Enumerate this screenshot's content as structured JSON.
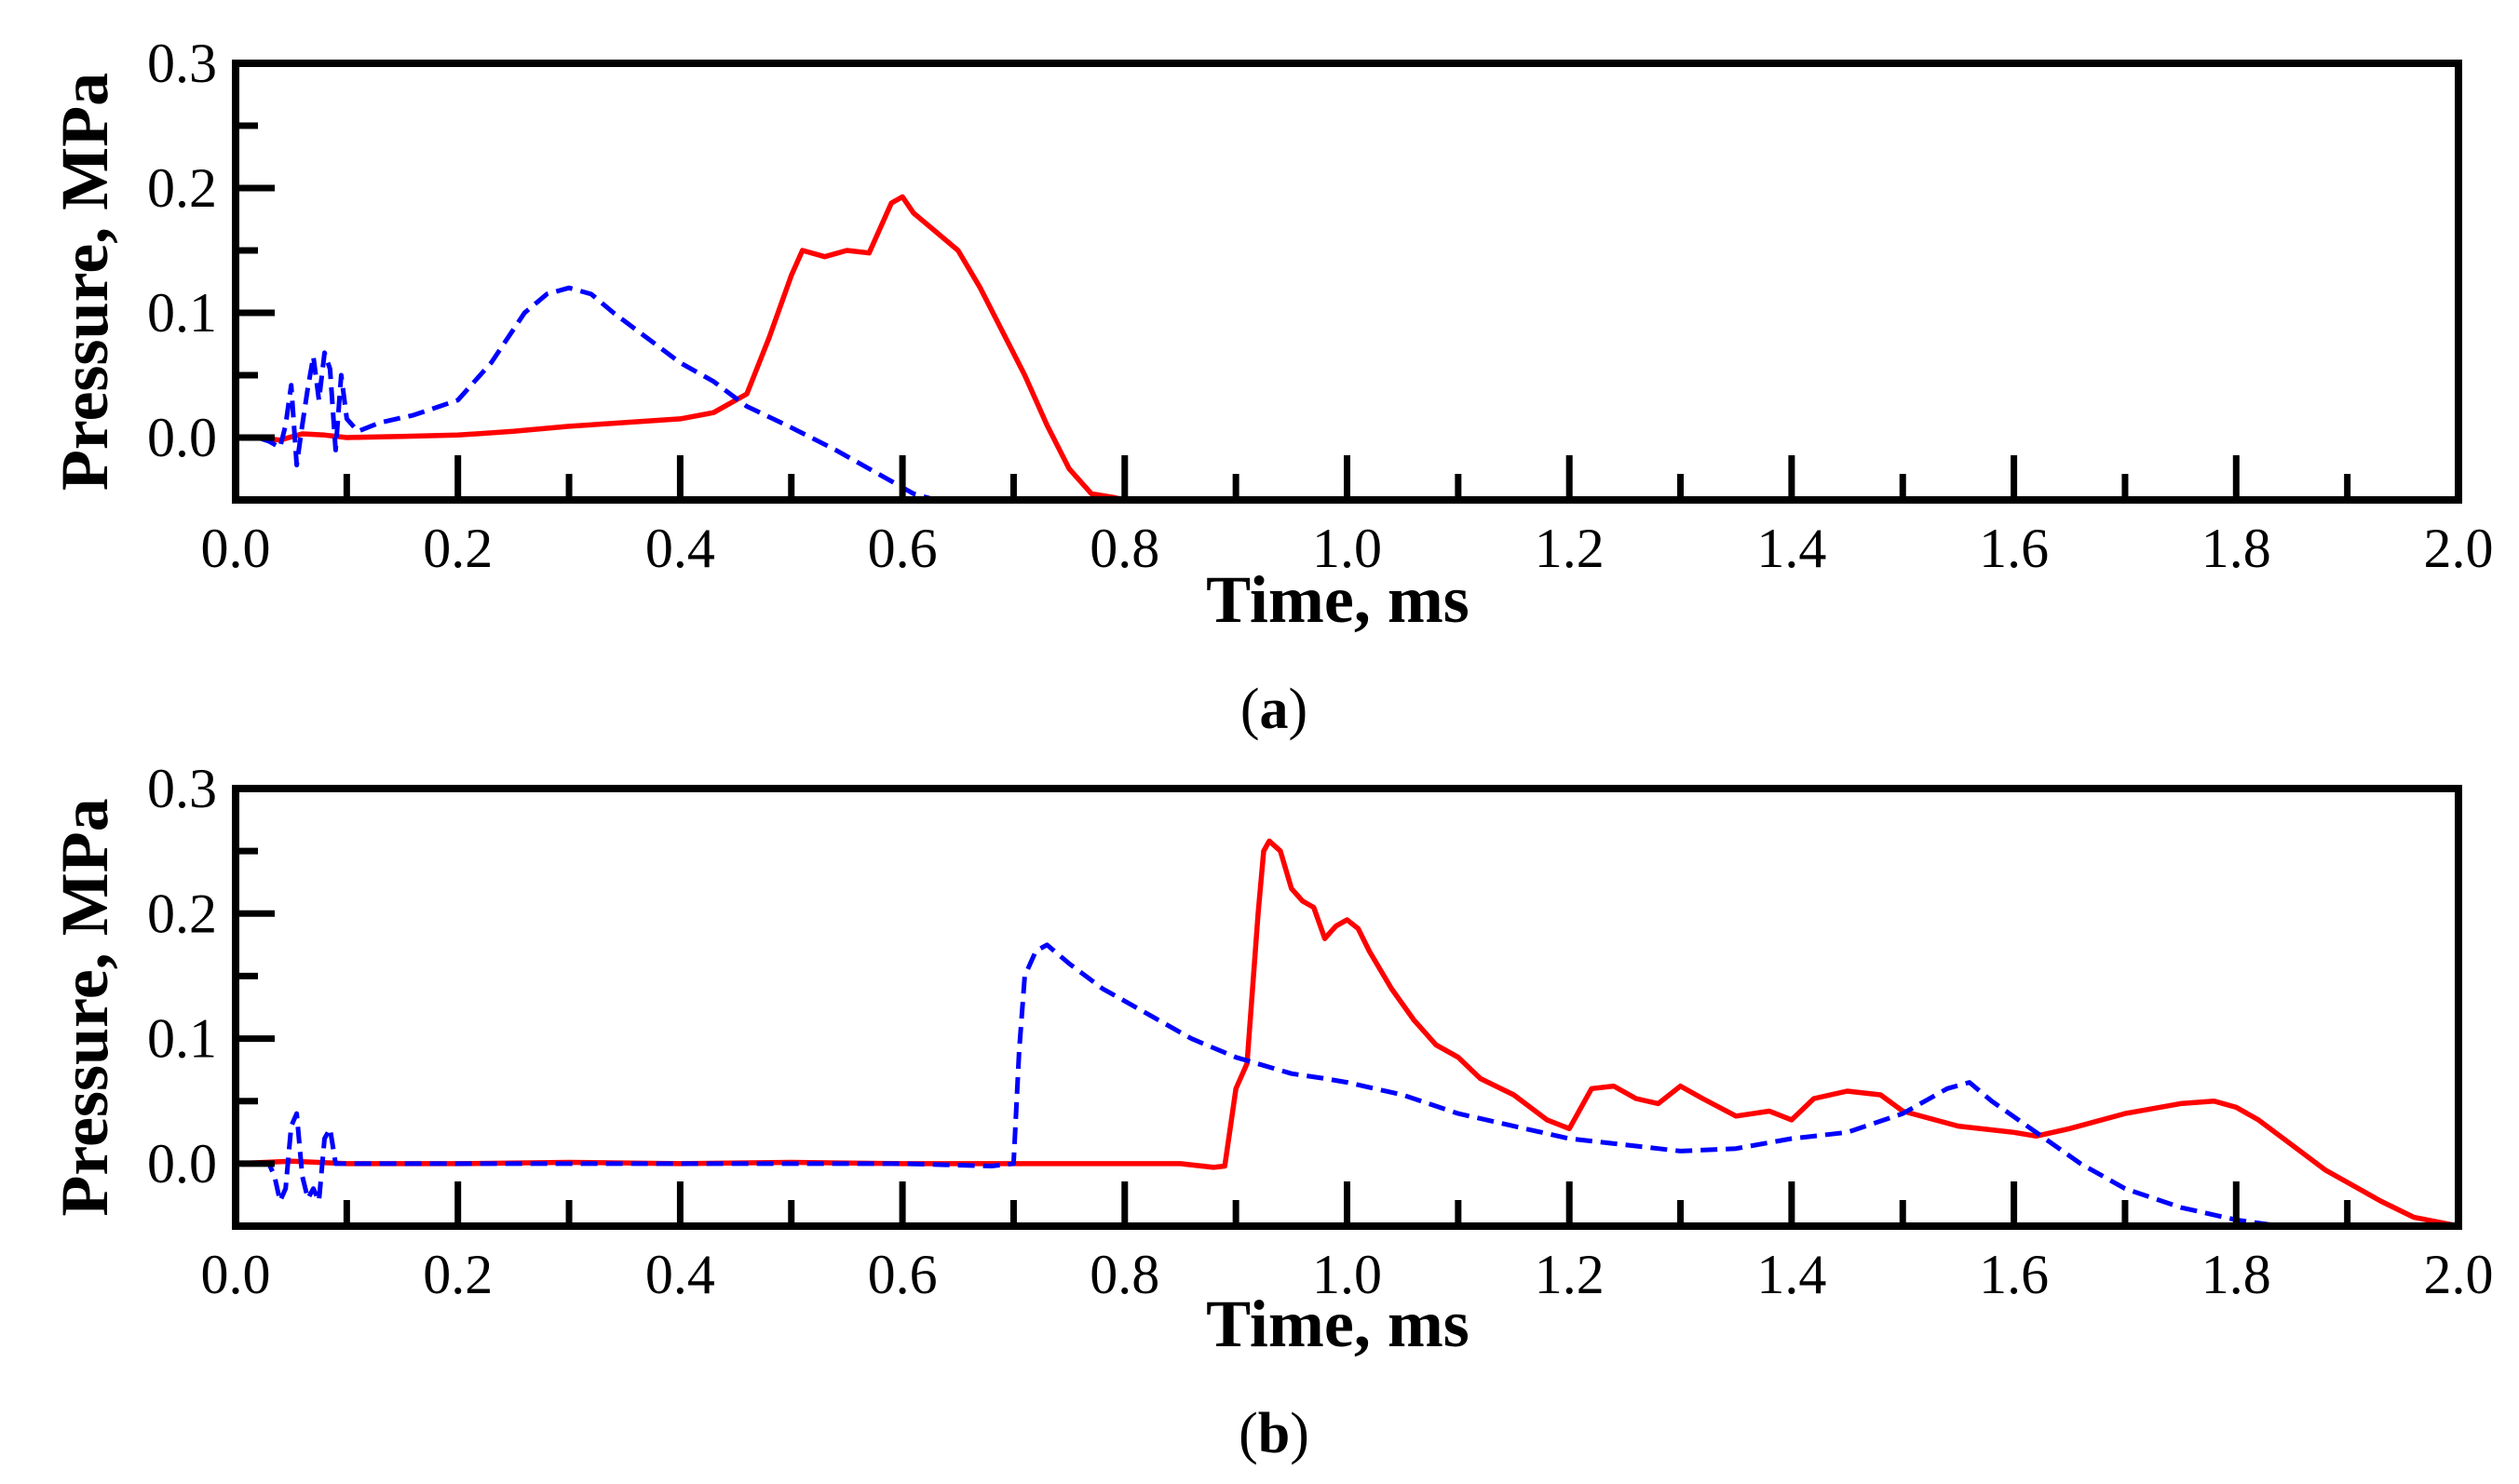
{
  "chart_data": [
    {
      "type": "line",
      "panel_label": "(a)",
      "panel_letter": "a",
      "xlabel": "Time, ms",
      "ylabel": "Pressure, MPa",
      "xlim": [
        0.0,
        2.0
      ],
      "ylim": [
        -0.05,
        0.3
      ],
      "xticks": [
        "0.0",
        "0.2",
        "0.4",
        "0.6",
        "0.8",
        "1.0",
        "1.2",
        "1.4",
        "1.6",
        "1.8",
        "2.0"
      ],
      "yticks": [
        "0.3",
        "0.2",
        "0.1",
        "0.0"
      ],
      "series": [
        {
          "name": "solid",
          "color": "#ff0000",
          "style": "solid",
          "x": [
            0.0,
            0.02,
            0.04,
            0.06,
            0.08,
            0.1,
            0.15,
            0.2,
            0.25,
            0.3,
            0.35,
            0.4,
            0.43,
            0.46,
            0.48,
            0.5,
            0.51,
            0.53,
            0.55,
            0.57,
            0.59,
            0.6,
            0.61,
            0.63,
            0.65,
            0.67,
            0.69,
            0.71,
            0.73,
            0.75,
            0.77,
            0.79,
            0.8
          ],
          "y": [
            0.0,
            0.0,
            -0.002,
            0.003,
            0.002,
            0.0,
            0.001,
            0.002,
            0.005,
            0.009,
            0.012,
            0.015,
            0.02,
            0.035,
            0.08,
            0.13,
            0.15,
            0.145,
            0.15,
            0.148,
            0.188,
            0.193,
            0.18,
            0.165,
            0.15,
            0.12,
            0.085,
            0.05,
            0.01,
            -0.025,
            -0.045,
            -0.048,
            -0.05
          ]
        },
        {
          "name": "dashed",
          "color": "#0000ff",
          "style": "dashed",
          "x": [
            0.0,
            0.02,
            0.03,
            0.04,
            0.045,
            0.05,
            0.055,
            0.06,
            0.065,
            0.07,
            0.075,
            0.08,
            0.085,
            0.09,
            0.095,
            0.1,
            0.11,
            0.13,
            0.16,
            0.2,
            0.23,
            0.26,
            0.28,
            0.3,
            0.32,
            0.34,
            0.37,
            0.4,
            0.43,
            0.46,
            0.5,
            0.54,
            0.58,
            0.61,
            0.63
          ],
          "y": [
            0.0,
            0.0,
            -0.003,
            -0.008,
            0.01,
            0.042,
            -0.022,
            0.01,
            0.04,
            0.065,
            0.03,
            0.068,
            0.055,
            -0.01,
            0.05,
            0.015,
            0.005,
            0.012,
            0.018,
            0.03,
            0.06,
            0.1,
            0.115,
            0.12,
            0.115,
            0.1,
            0.08,
            0.06,
            0.045,
            0.025,
            0.008,
            -0.01,
            -0.03,
            -0.045,
            -0.05
          ]
        }
      ]
    },
    {
      "type": "line",
      "panel_label": "(b)",
      "panel_letter": "b",
      "xlabel": "Time, ms",
      "ylabel": "Pressure, MPa",
      "xlim": [
        0.0,
        2.0
      ],
      "ylim": [
        -0.05,
        0.3
      ],
      "xticks": [
        "0.0",
        "0.2",
        "0.4",
        "0.6",
        "0.8",
        "1.0",
        "1.2",
        "1.4",
        "1.6",
        "1.8",
        "2.0"
      ],
      "yticks": [
        "0.3",
        "0.2",
        "0.1",
        "0.0"
      ],
      "series": [
        {
          "name": "solid",
          "color": "#ff0000",
          "style": "solid",
          "x": [
            0.0,
            0.05,
            0.1,
            0.2,
            0.3,
            0.4,
            0.5,
            0.6,
            0.7,
            0.8,
            0.85,
            0.88,
            0.89,
            0.9,
            0.91,
            0.92,
            0.925,
            0.93,
            0.94,
            0.95,
            0.96,
            0.97,
            0.98,
            0.99,
            1.0,
            1.01,
            1.02,
            1.04,
            1.06,
            1.08,
            1.1,
            1.12,
            1.15,
            1.18,
            1.2,
            1.22,
            1.24,
            1.26,
            1.28,
            1.3,
            1.32,
            1.35,
            1.38,
            1.4,
            1.42,
            1.45,
            1.48,
            1.5,
            1.55,
            1.6,
            1.62,
            1.65,
            1.7,
            1.75,
            1.78,
            1.8,
            1.82,
            1.85,
            1.88,
            1.9,
            1.93,
            1.96,
            2.0
          ],
          "y": [
            0.0,
            0.002,
            0.0,
            0.0,
            0.001,
            0.0,
            0.001,
            0.0,
            0.0,
            0.0,
            0.0,
            -0.003,
            -0.002,
            0.06,
            0.08,
            0.2,
            0.25,
            0.258,
            0.25,
            0.22,
            0.21,
            0.205,
            0.18,
            0.19,
            0.195,
            0.188,
            0.17,
            0.14,
            0.115,
            0.095,
            0.085,
            0.068,
            0.055,
            0.035,
            0.028,
            0.06,
            0.062,
            0.052,
            0.048,
            0.062,
            0.052,
            0.038,
            0.042,
            0.035,
            0.052,
            0.058,
            0.055,
            0.042,
            0.03,
            0.025,
            0.022,
            0.028,
            0.04,
            0.048,
            0.05,
            0.045,
            0.035,
            0.015,
            -0.005,
            -0.015,
            -0.03,
            -0.043,
            -0.05
          ]
        },
        {
          "name": "dashed",
          "color": "#0000ff",
          "style": "dashed",
          "x": [
            0.0,
            0.03,
            0.035,
            0.04,
            0.045,
            0.05,
            0.055,
            0.06,
            0.065,
            0.07,
            0.075,
            0.08,
            0.085,
            0.09,
            0.1,
            0.2,
            0.3,
            0.4,
            0.5,
            0.6,
            0.68,
            0.7,
            0.705,
            0.71,
            0.72,
            0.73,
            0.75,
            0.78,
            0.82,
            0.86,
            0.9,
            0.95,
            0.98,
            1.0,
            1.05,
            1.1,
            1.15,
            1.2,
            1.25,
            1.3,
            1.35,
            1.4,
            1.45,
            1.5,
            1.54,
            1.56,
            1.58,
            1.62,
            1.66,
            1.7,
            1.75,
            1.8,
            1.84
          ],
          "y": [
            0.0,
            0.0,
            -0.01,
            -0.03,
            -0.02,
            0.03,
            0.04,
            -0.01,
            -0.028,
            -0.02,
            -0.03,
            0.02,
            0.028,
            0.0,
            0.0,
            0.0,
            0.0,
            0.0,
            0.0,
            0.0,
            -0.002,
            0.0,
            0.09,
            0.15,
            0.17,
            0.175,
            0.16,
            0.14,
            0.12,
            0.1,
            0.085,
            0.072,
            0.068,
            0.065,
            0.055,
            0.04,
            0.03,
            0.02,
            0.015,
            0.01,
            0.012,
            0.02,
            0.025,
            0.04,
            0.06,
            0.065,
            0.05,
            0.025,
            0.0,
            -0.02,
            -0.035,
            -0.045,
            -0.05
          ]
        }
      ]
    }
  ]
}
